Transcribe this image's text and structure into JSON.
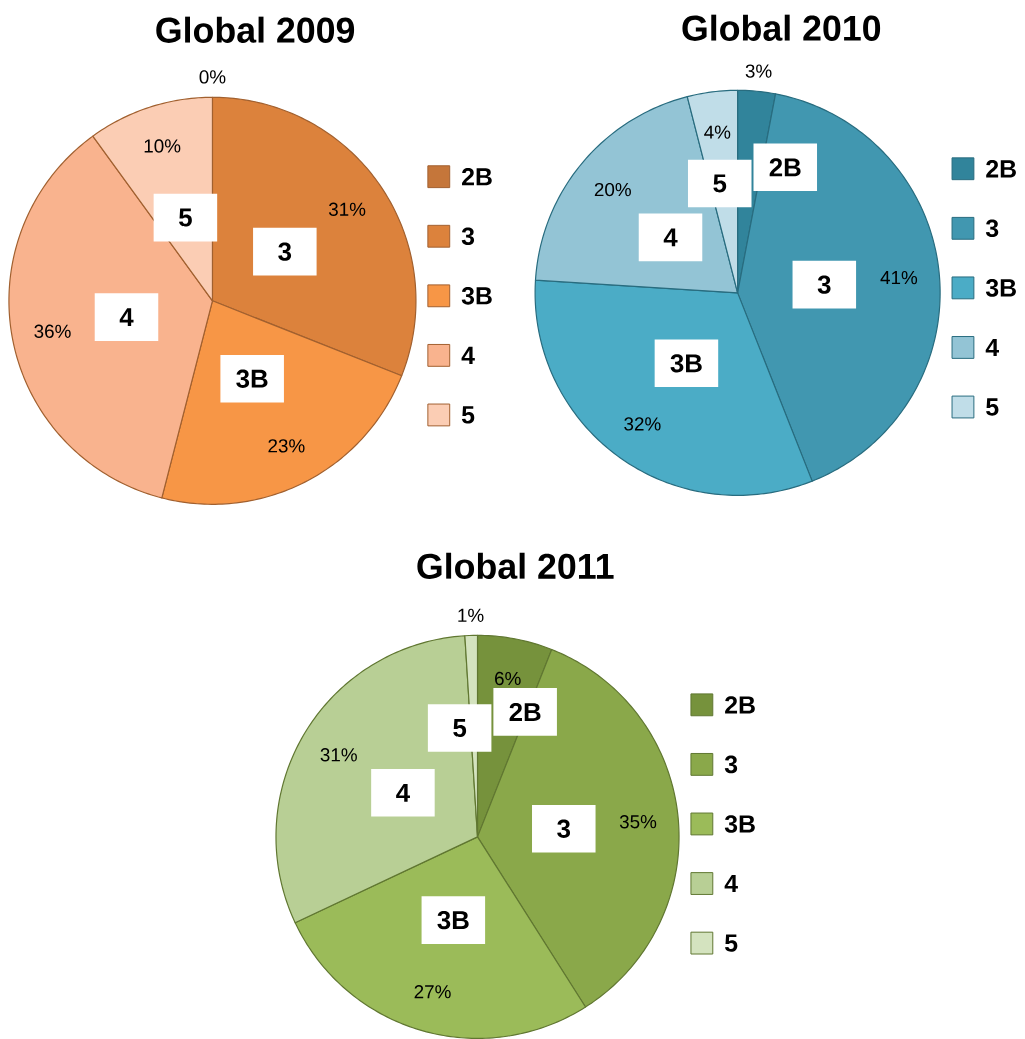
{
  "chart_data": [
    {
      "type": "pie",
      "title": "Global 2009",
      "categories": [
        "2B",
        "3",
        "3B",
        "4",
        "5"
      ],
      "values": [
        0,
        31,
        23,
        36,
        10
      ],
      "value_labels": [
        "0%",
        "31%",
        "23%",
        "36%",
        "10%"
      ],
      "colors": [
        "#c5763a",
        "#dc823c",
        "#f79646",
        "#f9b38e",
        "#fbcdb4"
      ],
      "legend": "right"
    },
    {
      "type": "pie",
      "title": "Global 2010",
      "categories": [
        "2B",
        "3",
        "3B",
        "4",
        "5"
      ],
      "values": [
        3,
        41,
        32,
        20,
        4
      ],
      "value_labels": [
        "3%",
        "41%",
        "32%",
        "20%",
        "4%"
      ],
      "colors": [
        "#31849b",
        "#4197b0",
        "#4bacc6",
        "#93c4d5",
        "#c0dde8"
      ],
      "legend": "right"
    },
    {
      "type": "pie",
      "title": "Global 2011",
      "categories": [
        "2B",
        "3",
        "3B",
        "4",
        "5"
      ],
      "values": [
        6,
        35,
        27,
        31,
        1
      ],
      "value_labels": [
        "6%",
        "35%",
        "27%",
        "31%",
        "1%"
      ],
      "colors": [
        "#76923c",
        "#8aa84a",
        "#9bbb59",
        "#b8cf95",
        "#d4e3bf"
      ],
      "legend": "right"
    }
  ]
}
